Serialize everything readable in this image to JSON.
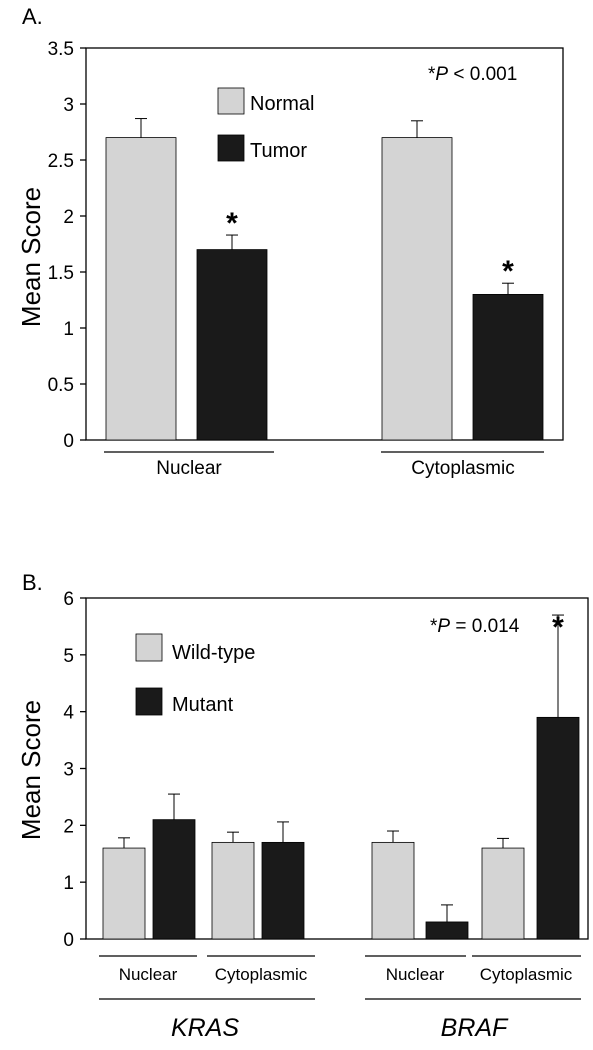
{
  "chart_data": [
    {
      "panel_label": "A.",
      "type": "bar",
      "ylabel": "Mean Score",
      "ylim": [
        0,
        3.5
      ],
      "yticks": [
        "0",
        "0.5",
        "1",
        "1.5",
        "2",
        "2.5",
        "3",
        "3.5"
      ],
      "categories": [
        "Nuclear",
        "Cytoplasmic"
      ],
      "series": [
        {
          "name": "Normal",
          "color": "#d4d4d4",
          "values": [
            2.7,
            2.7
          ],
          "errors": [
            0.17,
            0.15
          ]
        },
        {
          "name": "Tumor",
          "color": "#1a1a1a",
          "values": [
            1.7,
            1.3
          ],
          "errors": [
            0.13,
            0.1
          ]
        }
      ],
      "significance_markers": [
        "*",
        "*"
      ],
      "annotation": {
        "prefix": "*",
        "italic": "P",
        "suffix": " < 0.001"
      },
      "legend_position": "upper-center",
      "grid": false
    },
    {
      "panel_label": "B.",
      "type": "bar",
      "ylabel": "Mean Score",
      "ylim": [
        0,
        6
      ],
      "yticks": [
        "0",
        "1",
        "2",
        "3",
        "4",
        "5",
        "6"
      ],
      "groups": [
        "KRAS",
        "BRAF"
      ],
      "subcategories": [
        "Nuclear",
        "Cytoplasmic",
        "Nuclear",
        "Cytoplasmic"
      ],
      "series": [
        {
          "name": "Wild-type",
          "color": "#d4d4d4",
          "values": [
            1.6,
            1.7,
            1.7,
            1.6
          ],
          "errors": [
            0.18,
            0.18,
            0.2,
            0.17
          ]
        },
        {
          "name": "Mutant",
          "color": "#1a1a1a",
          "values": [
            2.1,
            1.7,
            0.3,
            3.9
          ],
          "errors": [
            0.45,
            0.36,
            0.3,
            1.8
          ]
        }
      ],
      "significance_marker": "*",
      "annotation": {
        "prefix": "*",
        "italic": "P",
        "suffix": " = 0.014"
      },
      "legend_position": "upper-left",
      "grid": false
    }
  ]
}
